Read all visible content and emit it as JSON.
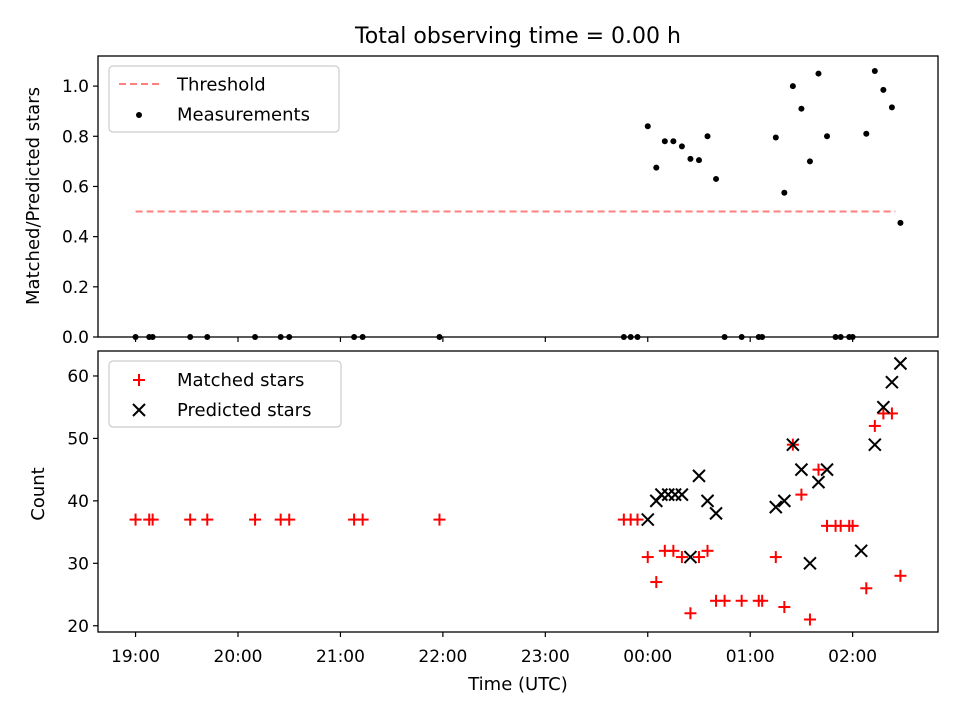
{
  "title": "Total observing time = 0.00 h",
  "colors": {
    "threshold": "#ff7f7f",
    "measurements": "#000000",
    "matched": "#ff0000",
    "predicted": "#000000"
  },
  "chart_data": [
    {
      "type": "scatter",
      "ylabel": "Matched/Predicted stars",
      "ylim": [
        0,
        1.12
      ],
      "yticks": [
        "0.0",
        "0.2",
        "0.4",
        "0.6",
        "0.8",
        "1.0"
      ],
      "legend": {
        "placement": "top-left",
        "entries": [
          {
            "label": "Threshold",
            "marker": "dashed-line"
          },
          {
            "label": "Measurements",
            "marker": "dot"
          }
        ]
      },
      "threshold": {
        "name": "Threshold",
        "y": 0.5,
        "x_range": [
          "19:00",
          "02:25"
        ]
      },
      "series": [
        {
          "name": "Measurements",
          "points": [
            [
              "19:00",
              0.0
            ],
            [
              "19:08",
              0.0
            ],
            [
              "19:10",
              0.0
            ],
            [
              "19:32",
              0.0
            ],
            [
              "19:42",
              0.0
            ],
            [
              "20:10",
              0.0
            ],
            [
              "20:25",
              0.0
            ],
            [
              "20:30",
              0.0
            ],
            [
              "21:08",
              0.0
            ],
            [
              "21:13",
              0.0
            ],
            [
              "21:58",
              0.0
            ],
            [
              "23:46",
              0.0
            ],
            [
              "23:50",
              0.0
            ],
            [
              "23:54",
              0.0
            ],
            [
              "00:00",
              0.84
            ],
            [
              "00:05",
              0.675
            ],
            [
              "00:10",
              0.78
            ],
            [
              "00:15",
              0.78
            ],
            [
              "00:20",
              0.76
            ],
            [
              "00:25",
              0.71
            ],
            [
              "00:30",
              0.705
            ],
            [
              "00:35",
              0.8
            ],
            [
              "00:40",
              0.63
            ],
            [
              "00:45",
              0.0
            ],
            [
              "00:55",
              0.0
            ],
            [
              "01:05",
              0.0
            ],
            [
              "01:07",
              0.0
            ],
            [
              "01:15",
              0.795
            ],
            [
              "01:20",
              0.575
            ],
            [
              "01:25",
              1.0
            ],
            [
              "01:30",
              0.91
            ],
            [
              "01:35",
              0.7
            ],
            [
              "01:40",
              1.05
            ],
            [
              "01:45",
              0.8
            ],
            [
              "01:50",
              0.0
            ],
            [
              "01:53",
              0.0
            ],
            [
              "01:58",
              0.0
            ],
            [
              "02:00",
              0.0
            ],
            [
              "02:08",
              0.81
            ],
            [
              "02:13",
              1.06
            ],
            [
              "02:18",
              0.985
            ],
            [
              "02:23",
              0.915
            ],
            [
              "02:28",
              0.455
            ]
          ]
        }
      ]
    },
    {
      "type": "scatter",
      "xlabel": "Time (UTC)",
      "ylabel": "Count",
      "ylim": [
        19,
        64
      ],
      "yticks": [
        "20",
        "30",
        "40",
        "50",
        "60"
      ],
      "xticks": [
        "19:00",
        "20:00",
        "21:00",
        "22:00",
        "23:00",
        "00:00",
        "01:00",
        "02:00"
      ],
      "legend": {
        "placement": "top-left",
        "entries": [
          {
            "label": "Matched stars",
            "marker": "plus"
          },
          {
            "label": "Predicted stars",
            "marker": "x"
          }
        ]
      },
      "series": [
        {
          "name": "Matched stars",
          "points": [
            [
              "19:00",
              37
            ],
            [
              "19:08",
              37
            ],
            [
              "19:10",
              37
            ],
            [
              "19:32",
              37
            ],
            [
              "19:42",
              37
            ],
            [
              "20:10",
              37
            ],
            [
              "20:25",
              37
            ],
            [
              "20:30",
              37
            ],
            [
              "21:08",
              37
            ],
            [
              "21:13",
              37
            ],
            [
              "21:58",
              37
            ],
            [
              "23:46",
              37
            ],
            [
              "23:50",
              37
            ],
            [
              "23:54",
              37
            ],
            [
              "00:00",
              31
            ],
            [
              "00:05",
              27
            ],
            [
              "00:10",
              32
            ],
            [
              "00:15",
              32
            ],
            [
              "00:20",
              31
            ],
            [
              "00:25",
              22
            ],
            [
              "00:30",
              31
            ],
            [
              "00:35",
              32
            ],
            [
              "00:40",
              24
            ],
            [
              "00:45",
              24
            ],
            [
              "00:55",
              24
            ],
            [
              "01:05",
              24
            ],
            [
              "01:07",
              24
            ],
            [
              "01:15",
              31
            ],
            [
              "01:20",
              23
            ],
            [
              "01:25",
              49
            ],
            [
              "01:30",
              41
            ],
            [
              "01:35",
              21
            ],
            [
              "01:40",
              45
            ],
            [
              "01:45",
              36
            ],
            [
              "01:50",
              36
            ],
            [
              "01:53",
              36
            ],
            [
              "01:58",
              36
            ],
            [
              "02:00",
              36
            ],
            [
              "02:08",
              26
            ],
            [
              "02:13",
              52
            ],
            [
              "02:18",
              54
            ],
            [
              "02:23",
              54
            ],
            [
              "02:28",
              28
            ]
          ]
        },
        {
          "name": "Predicted stars",
          "points": [
            [
              "00:00",
              37
            ],
            [
              "00:05",
              40
            ],
            [
              "00:08",
              41
            ],
            [
              "00:12",
              41
            ],
            [
              "00:16",
              41
            ],
            [
              "00:20",
              41
            ],
            [
              "00:25",
              31
            ],
            [
              "00:30",
              44
            ],
            [
              "00:35",
              40
            ],
            [
              "00:40",
              38
            ],
            [
              "01:15",
              39
            ],
            [
              "01:20",
              40
            ],
            [
              "01:25",
              49
            ],
            [
              "01:30",
              45
            ],
            [
              "01:35",
              30
            ],
            [
              "01:40",
              43
            ],
            [
              "01:45",
              45
            ],
            [
              "02:05",
              32
            ],
            [
              "02:13",
              49
            ],
            [
              "02:18",
              55
            ],
            [
              "02:23",
              59
            ],
            [
              "02:28",
              62
            ]
          ]
        }
      ]
    }
  ]
}
